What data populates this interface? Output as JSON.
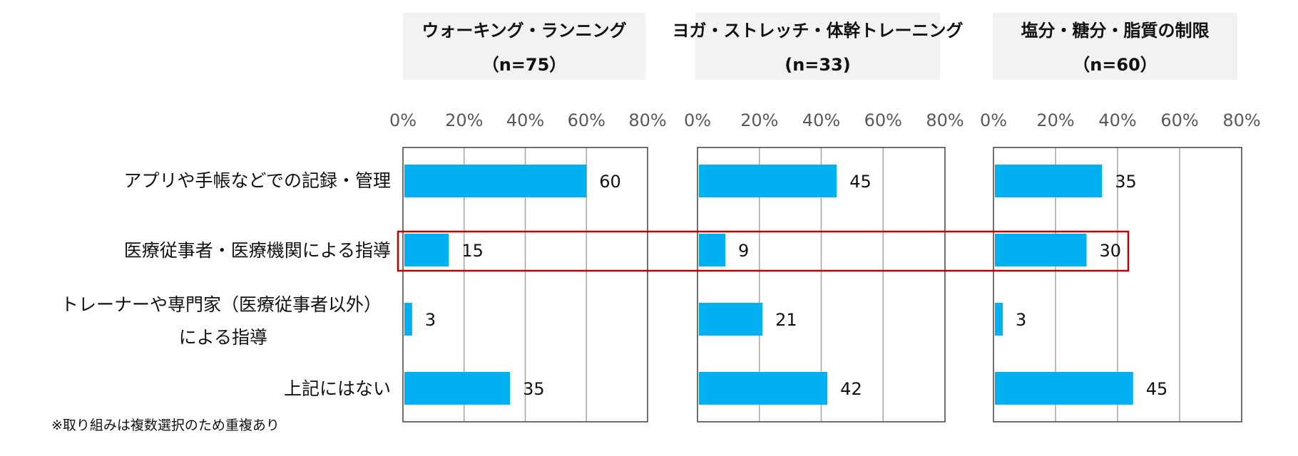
{
  "categories": [
    "アプリや手帳などでの記録・管理",
    "医療従事者・医療機関による指導",
    "トレーナーや専門家（医療従事者以外）",
    "による指導",
    "上記にはない"
  ],
  "footnote": "※取り組みは複数選択のため重複あり",
  "colors": {
    "bar": "#00B0F0",
    "frame": "#404040",
    "grid": "#A6A6A6",
    "title_bg": "#F2F2F2",
    "highlight": "#C00000",
    "tick_text": "#595959"
  },
  "chart_data": [
    {
      "type": "bar",
      "orientation": "horizontal",
      "title": "ウォーキング・ランニング",
      "subtitle": "（n=75）",
      "categories": [
        "アプリや手帳などでの記録・管理",
        "医療従事者・医療機関による指導",
        "トレーナーや専門家（医療従事者以外）による指導",
        "上記にはない"
      ],
      "values": [
        60,
        15,
        3,
        35
      ],
      "xlim": [
        0,
        80
      ],
      "ticks": [
        "0%",
        "20%",
        "40%",
        "60%",
        "80%"
      ],
      "unit": "%"
    },
    {
      "type": "bar",
      "orientation": "horizontal",
      "title": "ヨガ・ストレッチ・体幹トレーニング",
      "subtitle": "(n=33)",
      "categories": [
        "アプリや手帳などでの記録・管理",
        "医療従事者・医療機関による指導",
        "トレーナーや専門家（医療従事者以外）による指導",
        "上記にはない"
      ],
      "values": [
        45,
        9,
        21,
        42
      ],
      "xlim": [
        0,
        80
      ],
      "ticks": [
        "0%",
        "20%",
        "40%",
        "60%",
        "80%"
      ],
      "unit": "%"
    },
    {
      "type": "bar",
      "orientation": "horizontal",
      "title": "塩分・糖分・脂質の制限",
      "subtitle": "（n=60）",
      "categories": [
        "アプリや手帳などでの記録・管理",
        "医療従事者・医療機関による指導",
        "トレーナーや専門家（医療従事者以外）による指導",
        "上記にはない"
      ],
      "values": [
        35,
        30,
        3,
        45
      ],
      "xlim": [
        0,
        80
      ],
      "ticks": [
        "0%",
        "20%",
        "40%",
        "60%",
        "80%"
      ],
      "unit": "%"
    }
  ]
}
